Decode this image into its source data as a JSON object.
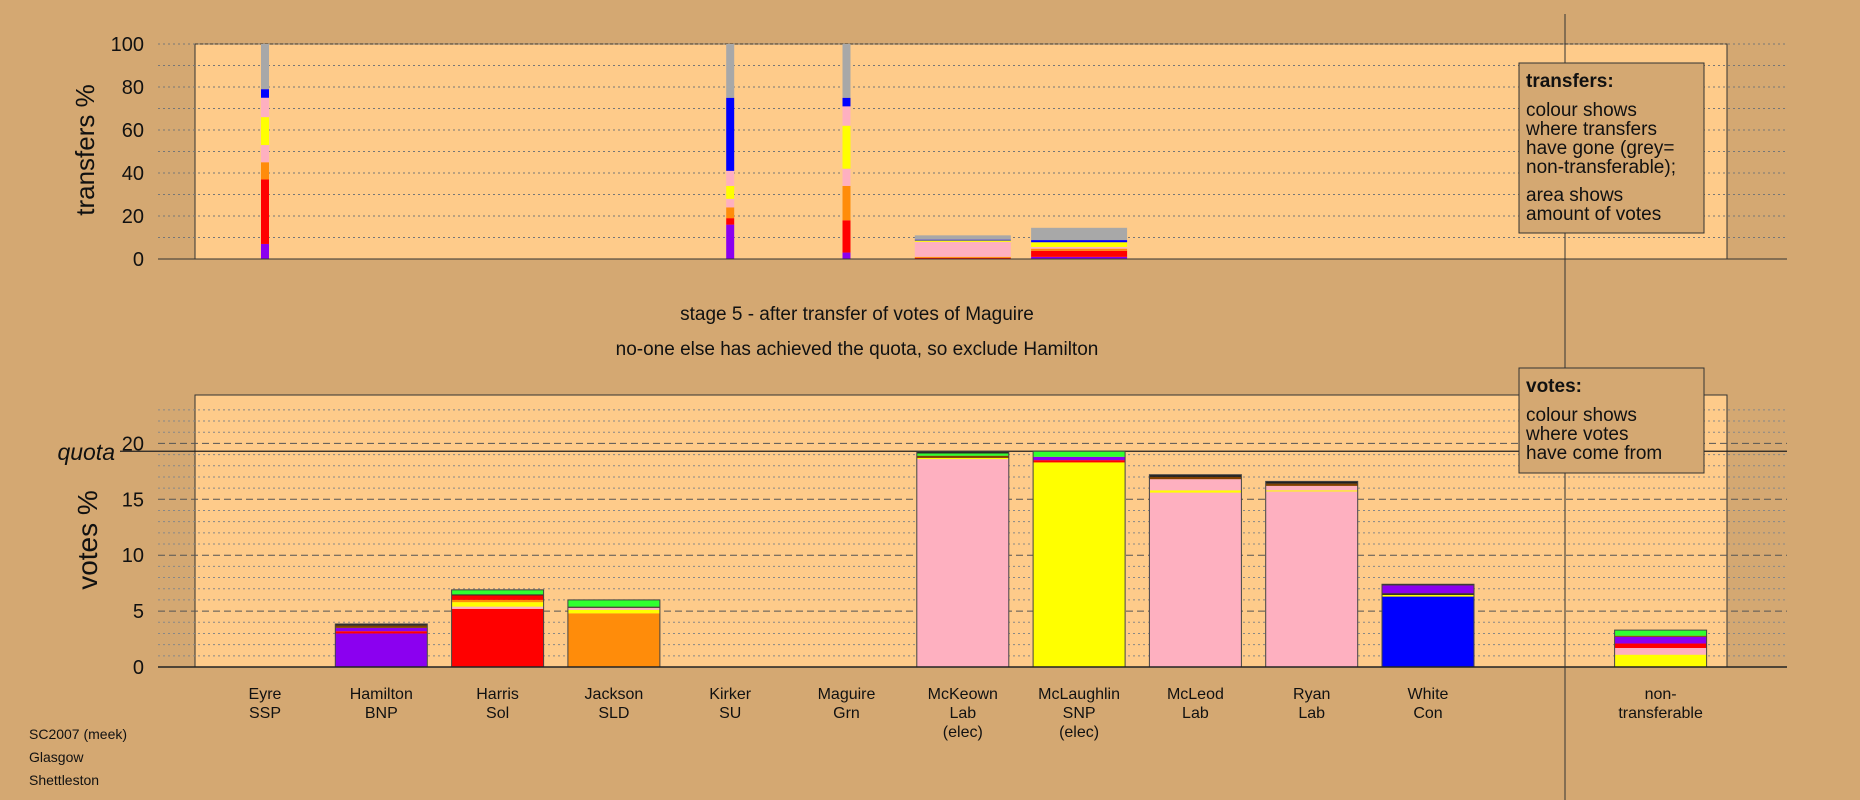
{
  "colors": {
    "background": "#d4a872",
    "panel": "#fecb8a",
    "grey": "#a8a8a8",
    "purple": "#8b00f0",
    "red": "#ff0000",
    "orange": "#ff8c0a",
    "pink": "#feb0c0",
    "yellow": "#ffff00",
    "blue": "#0000ff",
    "green": "#30ff30",
    "brown": "#804000",
    "black": "#202020"
  },
  "top_caption": "stage 5 - after transfer of votes of Maguire",
  "bottom_caption": "no-one else has achieved the quota, so exclude Hamilton",
  "footer": [
    "SC2007 (meek)",
    "Glasgow",
    "Shettleston"
  ],
  "legend_transfers": {
    "title": "transfers:",
    "lines": [
      "colour shows",
      "where transfers",
      "have gone (grey=",
      "non-transferable);",
      "area shows",
      "amount of votes"
    ]
  },
  "legend_votes": {
    "title": "votes:",
    "lines": [
      "colour shows",
      "where votes",
      "have come from"
    ]
  },
  "quota_label": "quota",
  "chart_data": [
    {
      "type": "bar",
      "stacked": true,
      "ylabel": "transfers %",
      "ylim": [
        0,
        100
      ],
      "yticks": [
        0,
        20,
        40,
        60,
        80,
        100
      ],
      "grid": true,
      "categories": [
        "Eyre",
        "Hamilton",
        "Harris",
        "Jackson",
        "Kirker",
        "Maguire",
        "McKeown",
        "McLaughlin",
        "McLeod",
        "Ryan",
        "White"
      ],
      "bars": [
        {
          "category": "Eyre",
          "width": "narrow",
          "segments": [
            {
              "color": "purple",
              "value": 7
            },
            {
              "color": "red",
              "value": 30
            },
            {
              "color": "orange",
              "value": 8
            },
            {
              "color": "pink",
              "value": 8
            },
            {
              "color": "yellow",
              "value": 13
            },
            {
              "color": "pink",
              "value": 9
            },
            {
              "color": "blue",
              "value": 4
            },
            {
              "color": "grey",
              "value": 21
            }
          ]
        },
        {
          "category": "Kirker",
          "width": "narrow",
          "segments": [
            {
              "color": "purple",
              "value": 16
            },
            {
              "color": "red",
              "value": 3
            },
            {
              "color": "orange",
              "value": 5
            },
            {
              "color": "pink",
              "value": 4
            },
            {
              "color": "yellow",
              "value": 6
            },
            {
              "color": "pink",
              "value": 7
            },
            {
              "color": "blue",
              "value": 34
            },
            {
              "color": "grey",
              "value": 25
            }
          ]
        },
        {
          "category": "Maguire",
          "width": "narrow",
          "segments": [
            {
              "color": "purple",
              "value": 3
            },
            {
              "color": "red",
              "value": 15
            },
            {
              "color": "orange",
              "value": 16
            },
            {
              "color": "pink",
              "value": 8
            },
            {
              "color": "yellow",
              "value": 20
            },
            {
              "color": "pink",
              "value": 9
            },
            {
              "color": "blue",
              "value": 4
            },
            {
              "color": "grey",
              "value": 25
            }
          ]
        },
        {
          "category": "McKeown",
          "width": "wide",
          "segments": [
            {
              "color": "red",
              "value": 0.5
            },
            {
              "color": "orange",
              "value": 0.5
            },
            {
              "color": "pink",
              "value": 7
            },
            {
              "color": "yellow",
              "value": 0.6
            },
            {
              "color": "blue",
              "value": 0.4
            },
            {
              "color": "grey",
              "value": 2
            }
          ]
        },
        {
          "category": "McLaughlin",
          "width": "wide",
          "segments": [
            {
              "color": "purple",
              "value": 1
            },
            {
              "color": "red",
              "value": 2.8
            },
            {
              "color": "orange",
              "value": 1
            },
            {
              "color": "pink",
              "value": 0.8
            },
            {
              "color": "yellow",
              "value": 2.2
            },
            {
              "color": "blue",
              "value": 1
            },
            {
              "color": "grey",
              "value": 5.7
            }
          ]
        }
      ]
    },
    {
      "type": "bar",
      "stacked": true,
      "ylabel": "votes %",
      "ylim": [
        0,
        20
      ],
      "yticks": [
        0,
        5,
        10,
        15,
        20
      ],
      "quota": 19.3,
      "grid": true,
      "categories": [
        {
          "name": "Eyre",
          "party": "SSP",
          "note": ""
        },
        {
          "name": "Hamilton",
          "party": "BNP",
          "note": ""
        },
        {
          "name": "Harris",
          "party": "Sol",
          "note": ""
        },
        {
          "name": "Jackson",
          "party": "SLD",
          "note": ""
        },
        {
          "name": "Kirker",
          "party": "SU",
          "note": ""
        },
        {
          "name": "Maguire",
          "party": "Grn",
          "note": ""
        },
        {
          "name": "McKeown",
          "party": "Lab",
          "note": "(elec)"
        },
        {
          "name": "McLaughlin",
          "party": "SNP",
          "note": "(elec)"
        },
        {
          "name": "McLeod",
          "party": "Lab",
          "note": ""
        },
        {
          "name": "Ryan",
          "party": "Lab",
          "note": ""
        },
        {
          "name": "White",
          "party": "Con",
          "note": ""
        },
        {
          "name": "",
          "party": "",
          "note": ""
        },
        {
          "name": "non-",
          "party": "transferable",
          "note": ""
        }
      ],
      "bars": [
        {
          "category": "Eyre",
          "segments": []
        },
        {
          "category": "Hamilton",
          "segments": [
            {
              "color": "purple",
              "value": 3.0
            },
            {
              "color": "red",
              "value": 0.2
            },
            {
              "color": "purple",
              "value": 0.3
            },
            {
              "color": "brown",
              "value": 0.2
            },
            {
              "color": "black",
              "value": 0.15
            }
          ]
        },
        {
          "category": "Harris",
          "segments": [
            {
              "color": "red",
              "value": 5.2
            },
            {
              "color": "pink",
              "value": 0.2
            },
            {
              "color": "yellow",
              "value": 0.4
            },
            {
              "color": "orange",
              "value": 0.2
            },
            {
              "color": "red",
              "value": 0.4
            },
            {
              "color": "black",
              "value": 0.1
            },
            {
              "color": "green",
              "value": 0.4
            }
          ]
        },
        {
          "category": "Jackson",
          "segments": [
            {
              "color": "orange",
              "value": 4.8
            },
            {
              "color": "yellow",
              "value": 0.3
            },
            {
              "color": "pink",
              "value": 0.2
            },
            {
              "color": "black",
              "value": 0.1
            },
            {
              "color": "green",
              "value": 0.6
            }
          ]
        },
        {
          "category": "Kirker",
          "segments": []
        },
        {
          "category": "Maguire",
          "segments": []
        },
        {
          "category": "McKeown",
          "segments": [
            {
              "color": "pink",
              "value": 18.6
            },
            {
              "color": "yellow",
              "value": 0.1
            },
            {
              "color": "brown",
              "value": 0.2
            },
            {
              "color": "green",
              "value": 0.2
            },
            {
              "color": "black",
              "value": 0.15
            }
          ]
        },
        {
          "category": "McLaughlin",
          "segments": [
            {
              "color": "yellow",
              "value": 18.3
            },
            {
              "color": "red",
              "value": 0.2
            },
            {
              "color": "purple",
              "value": 0.3
            },
            {
              "color": "green",
              "value": 0.5
            }
          ]
        },
        {
          "category": "McLeod",
          "segments": [
            {
              "color": "pink",
              "value": 15.6
            },
            {
              "color": "yellow",
              "value": 0.2
            },
            {
              "color": "pink",
              "value": 1.0
            },
            {
              "color": "brown",
              "value": 0.2
            },
            {
              "color": "black",
              "value": 0.2
            }
          ]
        },
        {
          "category": "Ryan",
          "segments": [
            {
              "color": "pink",
              "value": 15.7
            },
            {
              "color": "yellow",
              "value": 0.1
            },
            {
              "color": "pink",
              "value": 0.4
            },
            {
              "color": "brown",
              "value": 0.2
            },
            {
              "color": "black",
              "value": 0.2
            }
          ]
        },
        {
          "category": "White",
          "segments": [
            {
              "color": "blue",
              "value": 6.3
            },
            {
              "color": "yellow",
              "value": 0.15
            },
            {
              "color": "black",
              "value": 0.15
            },
            {
              "color": "purple",
              "value": 0.7
            },
            {
              "color": "black",
              "value": 0.1
            }
          ]
        },
        {
          "category": "",
          "segments": []
        },
        {
          "category": "non-",
          "segments": [
            {
              "color": "yellow",
              "value": 1.1
            },
            {
              "color": "pink",
              "value": 0.6
            },
            {
              "color": "red",
              "value": 0.4
            },
            {
              "color": "purple",
              "value": 0.6
            },
            {
              "color": "brown",
              "value": 0.1
            },
            {
              "color": "green",
              "value": 0.5
            }
          ]
        }
      ]
    }
  ]
}
